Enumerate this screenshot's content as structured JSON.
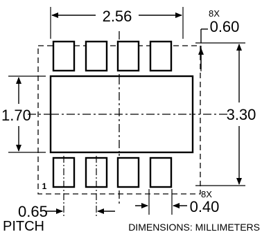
{
  "dimensions": {
    "overall_width": "2.56",
    "overall_height": "3.30",
    "body_height": "1.70",
    "pad_width_count": "8X",
    "pad_width": "0.40",
    "pad_length_count": "8X",
    "pad_length": "0.60",
    "pitch": "0.65",
    "pitch_label": "PITCH"
  },
  "pin1_marker": "1",
  "units_note": "DIMENSIONS: MILLIMETERS"
}
